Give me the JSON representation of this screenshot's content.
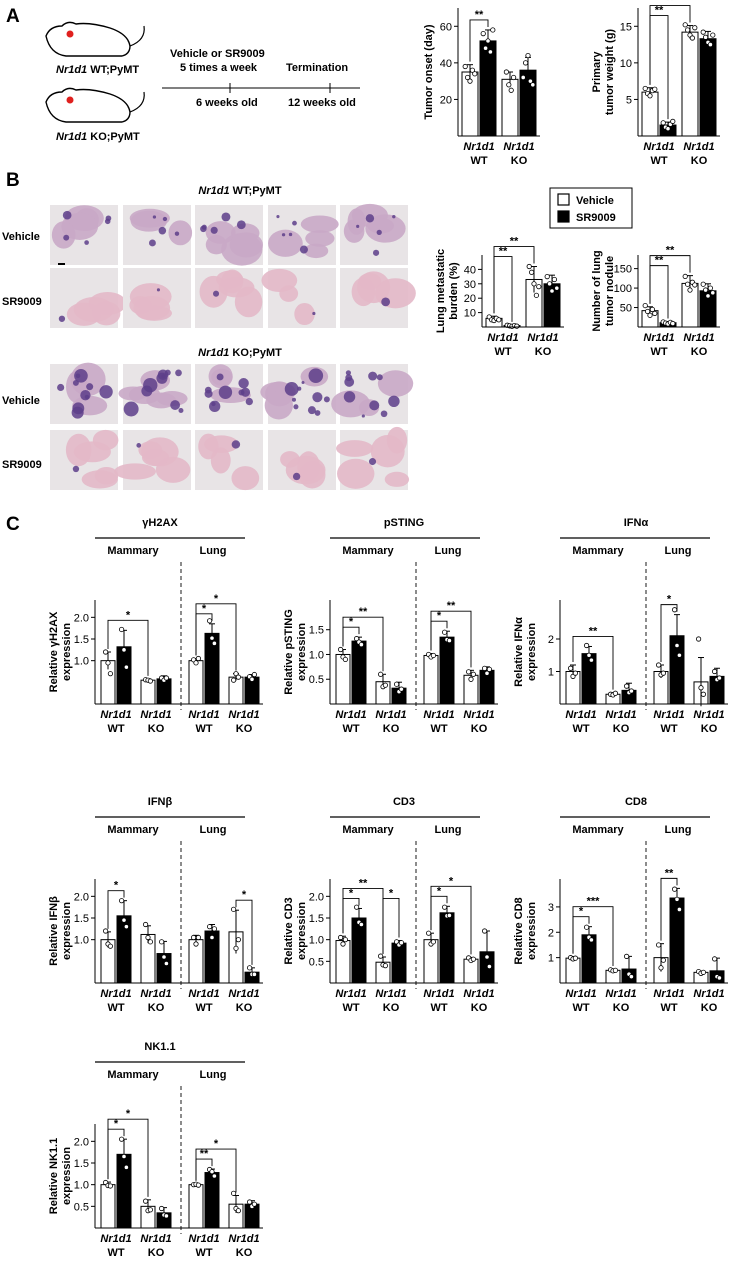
{
  "panels": {
    "a": "A",
    "b": "B",
    "c": "C"
  },
  "schema": {
    "mouse1_gene": "Nr1d1",
    "mouse1_rest": " WT;PyMT",
    "mouse2_gene": "Nr1d1",
    "mouse2_rest": " KO;PyMT",
    "treatment_line1": "Vehicle or SR9009",
    "treatment_line2": "5 times a week",
    "termination": "Termination",
    "start_age": "6 weeks old",
    "end_age": "12 weeks old"
  },
  "histology": {
    "wt_title_gene": "Nr1d1",
    "wt_title_rest": " WT;PyMT",
    "ko_title_gene": "Nr1d1",
    "ko_title_rest": " KO;PyMT",
    "row_vehicle": "Vehicle",
    "row_sr9009": "SR9009"
  },
  "legend": {
    "vehicle": "Vehicle",
    "sr9009": "SR9009"
  },
  "groups": {
    "gene": "Nr1d1",
    "wt": "WT",
    "ko": "KO"
  },
  "tissues": {
    "mammary": "Mammary",
    "lung": "Lung"
  },
  "colors": {
    "vehicle_fill": "#ffffff",
    "sr9009_fill": "#000000",
    "stroke": "#000000"
  },
  "chart_data": [
    {
      "id": "tumor_onset",
      "type": "bar",
      "ylabel": [
        "Tumor onset (day)"
      ],
      "yticks": [
        20,
        40,
        60
      ],
      "ylim": [
        0,
        70
      ],
      "groups": [
        "Nr1d1 WT",
        "Nr1d1 KO"
      ],
      "series": [
        "Vehicle",
        "SR9009"
      ],
      "values": [
        35,
        52,
        31,
        36
      ],
      "errors": [
        4,
        6,
        4,
        7
      ],
      "points": [
        [
          38,
          32,
          30,
          36,
          34
        ],
        [
          56,
          48,
          52,
          46,
          58
        ],
        [
          35,
          28,
          25,
          32
        ],
        [
          32,
          40,
          44,
          30,
          28
        ]
      ],
      "sig": [
        {
          "a": 0,
          "b": 1,
          "label": "**",
          "tier": 0
        }
      ]
    },
    {
      "id": "tumor_weight",
      "type": "bar",
      "ylabel": [
        "Primary",
        "tumor weight (g)"
      ],
      "yticks": [
        5,
        10,
        15
      ],
      "ylim": [
        0,
        17.5
      ],
      "groups": [
        "Nr1d1 WT",
        "Nr1d1 KO"
      ],
      "series": [
        "Vehicle",
        "SR9009"
      ],
      "values": [
        6.0,
        1.5,
        14.2,
        13.3
      ],
      "errors": [
        0.6,
        0.4,
        0.9,
        1.0
      ],
      "points": [
        [
          6.5,
          5.8,
          5.5,
          6.2,
          6.4
        ],
        [
          1.8,
          1.2,
          1.0,
          1.6,
          2.0
        ],
        [
          15.2,
          14.5,
          13.8,
          13.4,
          14.8
        ],
        [
          14.2,
          13.5,
          12.8,
          12.5,
          13.8
        ]
      ],
      "sig": [
        {
          "a": 0,
          "b": 1,
          "label": "**",
          "tier": 0
        },
        {
          "a": 0,
          "b": 2,
          "label": "**",
          "tier": 1
        }
      ]
    },
    {
      "id": "lung_burden",
      "type": "bar",
      "ylabel": [
        "Lung metastatic",
        "burden (%)"
      ],
      "yticks": [
        10,
        20,
        30,
        40
      ],
      "ylim": [
        0,
        50
      ],
      "groups": [
        "Nr1d1 WT",
        "Nr1d1 KO"
      ],
      "series": [
        "Vehicle",
        "SR9009"
      ],
      "values": [
        6,
        1,
        33,
        30
      ],
      "errors": [
        1.5,
        0.5,
        9,
        6
      ],
      "points": [
        [
          7,
          5,
          4.5,
          6,
          5
        ],
        [
          1.2,
          0.8,
          0.5,
          1.0,
          0.6
        ],
        [
          42,
          38,
          30,
          22,
          28
        ],
        [
          35,
          30,
          25,
          33,
          27
        ]
      ],
      "sig": [
        {
          "a": 0,
          "b": 1,
          "label": "**",
          "tier": 0
        },
        {
          "a": 0,
          "b": 2,
          "label": "**",
          "tier": 1
        }
      ]
    },
    {
      "id": "tumor_nodule",
      "type": "bar",
      "ylabel": [
        "Number of lung",
        "tumor nodule"
      ],
      "yticks": [
        50,
        100,
        150
      ],
      "ylim": [
        0,
        185
      ],
      "groups": [
        "Nr1d1 WT",
        "Nr1d1 KO"
      ],
      "series": [
        "Vehicle",
        "SR9009"
      ],
      "values": [
        42,
        11,
        112,
        93
      ],
      "errors": [
        10,
        3,
        20,
        18
      ],
      "points": [
        [
          55,
          40,
          30,
          45,
          35
        ],
        [
          13,
          10,
          8,
          12,
          9
        ],
        [
          130,
          110,
          95,
          115,
          108
        ],
        [
          110,
          95,
          80,
          100,
          88
        ]
      ],
      "sig": [
        {
          "a": 0,
          "b": 1,
          "label": "**",
          "tier": 0
        },
        {
          "a": 0,
          "b": 2,
          "label": "**",
          "tier": 1
        }
      ]
    },
    {
      "id": "gH2AX",
      "type": "bar",
      "title": "γH2AX",
      "ylabel": [
        "Relative γH2AX",
        "expression"
      ],
      "yticks": [
        1.0,
        1.5,
        2.0
      ],
      "ylim": [
        0,
        2.4
      ],
      "groups": [
        "Nr1d1 WT",
        "Nr1d1 KO"
      ],
      "series": [
        "Vehicle",
        "SR9009"
      ],
      "mammary": {
        "values": [
          1.0,
          1.32,
          0.55,
          0.58
        ],
        "errors": [
          0.2,
          0.38,
          0.03,
          0.07
        ],
        "points": [
          [
            1.2,
            0.95,
            0.7
          ],
          [
            1.72,
            1.25,
            0.85
          ],
          [
            0.56,
            0.55,
            0.53
          ],
          [
            0.6,
            0.55,
            0.6
          ]
        ],
        "sig": [
          {
            "a": 0,
            "b": 2,
            "label": "*",
            "tier": 0
          }
        ]
      },
      "lung": {
        "values": [
          1.0,
          1.63,
          0.62,
          0.62
        ],
        "errors": [
          0.05,
          0.22,
          0.08,
          0.06
        ],
        "points": [
          [
            1.02,
            0.95,
            1.05
          ],
          [
            1.92,
            1.52,
            1.4
          ],
          [
            0.55,
            0.7,
            0.62
          ],
          [
            0.63,
            0.57,
            0.68
          ]
        ],
        "sig": [
          {
            "a": 0,
            "b": 1,
            "label": "*",
            "tier": 0
          },
          {
            "a": 0,
            "b": 2,
            "label": "*",
            "tier": 1
          }
        ]
      }
    },
    {
      "id": "pSTING",
      "type": "bar",
      "title": "pSTING",
      "ylabel": [
        "Relative pSTING",
        "expression"
      ],
      "yticks": [
        0.5,
        1.0,
        1.5
      ],
      "ylim": [
        0,
        2.1
      ],
      "groups": [
        "Nr1d1 WT",
        "Nr1d1 KO"
      ],
      "series": [
        "Vehicle",
        "SR9009"
      ],
      "mammary": {
        "values": [
          1.0,
          1.27,
          0.45,
          0.32
        ],
        "errors": [
          0.1,
          0.08,
          0.15,
          0.12
        ],
        "points": [
          [
            1.1,
            0.95,
            0.9
          ],
          [
            1.32,
            1.25,
            1.2
          ],
          [
            0.6,
            0.35,
            0.38
          ],
          [
            0.4,
            0.25,
            0.3
          ]
        ],
        "sig": [
          {
            "a": 0,
            "b": 1,
            "label": "*",
            "tier": 0
          },
          {
            "a": 0,
            "b": 2,
            "label": "**",
            "tier": 1
          }
        ]
      },
      "lung": {
        "values": [
          0.98,
          1.35,
          0.58,
          0.68
        ],
        "errors": [
          0.04,
          0.12,
          0.1,
          0.07
        ],
        "points": [
          [
            1.0,
            0.95,
            0.98
          ],
          [
            1.45,
            1.3,
            1.28
          ],
          [
            0.65,
            0.5,
            0.6
          ],
          [
            0.72,
            0.62,
            0.7
          ]
        ],
        "sig": [
          {
            "a": 0,
            "b": 1,
            "label": "*",
            "tier": 0
          },
          {
            "a": 0,
            "b": 2,
            "label": "**",
            "tier": 1
          }
        ]
      }
    },
    {
      "id": "IFNa",
      "type": "bar",
      "title": "IFNα",
      "ylabel": [
        "Relative IFNα",
        "expression"
      ],
      "yticks": [
        1.0,
        2.0
      ],
      "ylim": [
        0,
        3.2
      ],
      "groups": [
        "Nr1d1 WT",
        "Nr1d1 KO"
      ],
      "series": [
        "Vehicle",
        "SR9009"
      ],
      "mammary": {
        "values": [
          1.0,
          1.55,
          0.3,
          0.42
        ],
        "errors": [
          0.2,
          0.22,
          0.05,
          0.22
        ],
        "points": [
          [
            1.1,
            0.85,
            0.95
          ],
          [
            1.8,
            1.5,
            1.35
          ],
          [
            0.3,
            0.28,
            0.33
          ],
          [
            0.55,
            0.35,
            0.4
          ]
        ],
        "sig": [
          {
            "a": 0,
            "b": 2,
            "label": "**",
            "tier": 0
          }
        ]
      },
      "lung": {
        "values": [
          1.0,
          2.1,
          0.68,
          0.85
        ],
        "errors": [
          0.2,
          0.65,
          0.75,
          0.25
        ],
        "points": [
          [
            1.2,
            0.9,
            0.95
          ],
          [
            2.9,
            1.8,
            1.5
          ],
          [
            2.0,
            0.5,
            0.3
          ],
          [
            1.0,
            0.75,
            0.8
          ]
        ],
        "sig": [
          {
            "a": 0,
            "b": 1,
            "label": "*",
            "tier": 0
          }
        ]
      }
    },
    {
      "id": "IFNb",
      "type": "bar",
      "title": "IFNβ",
      "ylabel": [
        "Relative IFNβ",
        "expression"
      ],
      "yticks": [
        1.0,
        1.5,
        2.0
      ],
      "ylim": [
        0,
        2.4
      ],
      "groups": [
        "Nr1d1 WT",
        "Nr1d1 KO"
      ],
      "series": [
        "Vehicle",
        "SR9009"
      ],
      "mammary": {
        "values": [
          1.0,
          1.55,
          1.12,
          0.68
        ],
        "errors": [
          0.18,
          0.35,
          0.2,
          0.28
        ],
        "points": [
          [
            1.2,
            0.9,
            0.85
          ],
          [
            1.9,
            1.45,
            1.3
          ],
          [
            1.35,
            1.05,
            0.95
          ],
          [
            0.95,
            0.6,
            0.45
          ]
        ],
        "sig": [
          {
            "a": 0,
            "b": 1,
            "label": "*",
            "tier": 0
          }
        ]
      },
      "lung": {
        "values": [
          1.0,
          1.2,
          1.18,
          0.25
        ],
        "errors": [
          0.1,
          0.15,
          0.5,
          0.1
        ],
        "points": [
          [
            1.05,
            0.9,
            1.05
          ],
          [
            1.3,
            1.05,
            1.25
          ],
          [
            1.7,
            0.8,
            1.0
          ],
          [
            0.35,
            0.2,
            0.2
          ]
        ],
        "sig": [
          {
            "a": 2,
            "b": 3,
            "label": "*",
            "tier": 0
          }
        ]
      }
    },
    {
      "id": "CD3",
      "type": "bar",
      "title": "CD3",
      "ylabel": [
        "Relative CD3",
        "expression"
      ],
      "yticks": [
        0.5,
        1.0,
        1.5,
        2.0
      ],
      "ylim": [
        0,
        2.4
      ],
      "groups": [
        "Nr1d1 WT",
        "Nr1d1 KO"
      ],
      "series": [
        "Vehicle",
        "SR9009"
      ],
      "mammary": {
        "values": [
          0.98,
          1.5,
          0.48,
          0.92
        ],
        "errors": [
          0.1,
          0.22,
          0.12,
          0.06
        ],
        "points": [
          [
            1.05,
            0.9,
            1.0
          ],
          [
            1.75,
            1.4,
            1.35
          ],
          [
            0.62,
            0.42,
            0.4
          ],
          [
            0.95,
            0.88,
            0.93
          ]
        ],
        "sig": [
          {
            "a": 0,
            "b": 1,
            "label": "*",
            "tier": 0
          },
          {
            "a": 0,
            "b": 2,
            "label": "**",
            "tier": 1
          },
          {
            "a": 2,
            "b": 3,
            "label": "*",
            "tier": 0
          }
        ]
      },
      "lung": {
        "values": [
          1.0,
          1.62,
          0.55,
          0.72
        ],
        "errors": [
          0.15,
          0.15,
          0.04,
          0.48
        ],
        "points": [
          [
            1.15,
            0.9,
            0.95
          ],
          [
            1.75,
            1.55,
            1.56
          ],
          [
            0.58,
            0.52,
            0.55
          ],
          [
            1.2,
            0.6,
            0.38
          ]
        ],
        "sig": [
          {
            "a": 0,
            "b": 1,
            "label": "*",
            "tier": 0
          },
          {
            "a": 0,
            "b": 2,
            "label": "*",
            "tier": 1
          }
        ]
      }
    },
    {
      "id": "CD8",
      "type": "bar",
      "title": "CD8",
      "ylabel": [
        "Relative CD8",
        "expression"
      ],
      "yticks": [
        1.0,
        2.0,
        3.0
      ],
      "ylim": [
        0,
        4.1
      ],
      "groups": [
        "Nr1d1 WT",
        "Nr1d1 KO"
      ],
      "series": [
        "Vehicle",
        "SR9009"
      ],
      "mammary": {
        "values": [
          0.98,
          1.9,
          0.5,
          0.55
        ],
        "errors": [
          0.06,
          0.32,
          0.05,
          0.5
        ],
        "points": [
          [
            1.0,
            0.95,
            0.98
          ],
          [
            2.2,
            1.8,
            1.7
          ],
          [
            0.52,
            0.48,
            0.5
          ],
          [
            1.05,
            0.35,
            0.25
          ]
        ],
        "sig": [
          {
            "a": 0,
            "b": 1,
            "label": "*",
            "tier": 0
          },
          {
            "a": 0,
            "b": 2,
            "label": "***",
            "tier": 1
          }
        ]
      },
      "lung": {
        "values": [
          1.0,
          3.35,
          0.42,
          0.48
        ],
        "errors": [
          0.55,
          0.38,
          0.05,
          0.5
        ],
        "points": [
          [
            1.5,
            0.6,
            0.9
          ],
          [
            3.7,
            3.3,
            2.9
          ],
          [
            0.45,
            0.38,
            0.42
          ],
          [
            0.95,
            0.25,
            0.2
          ]
        ],
        "sig": [
          {
            "a": 0,
            "b": 1,
            "label": "**",
            "tier": 0
          }
        ]
      }
    },
    {
      "id": "NK11",
      "type": "bar",
      "title": "NK1.1",
      "ylabel": [
        "Relative NK1.1",
        "expression"
      ],
      "yticks": [
        0.5,
        1.0,
        1.5,
        2.0
      ],
      "ylim": [
        0,
        2.4
      ],
      "groups": [
        "Nr1d1 WT",
        "Nr1d1 KO"
      ],
      "series": [
        "Vehicle",
        "SR9009"
      ],
      "mammary": {
        "values": [
          1.0,
          1.7,
          0.5,
          0.35
        ],
        "errors": [
          0.06,
          0.35,
          0.15,
          0.12
        ],
        "points": [
          [
            1.05,
            0.98,
            0.97
          ],
          [
            2.05,
            1.65,
            1.4
          ],
          [
            0.62,
            0.4,
            0.42
          ],
          [
            0.45,
            0.3,
            0.28
          ]
        ],
        "sig": [
          {
            "a": 0,
            "b": 1,
            "label": "*",
            "tier": 0
          },
          {
            "a": 0,
            "b": 2,
            "label": "*",
            "tier": 1
          }
        ]
      },
      "lung": {
        "values": [
          1.0,
          1.28,
          0.55,
          0.55
        ],
        "errors": [
          0.02,
          0.08,
          0.2,
          0.08
        ],
        "points": [
          [
            1.0,
            1.01,
            0.99
          ],
          [
            1.35,
            1.3,
            1.2
          ],
          [
            0.8,
            0.45,
            0.4
          ],
          [
            0.6,
            0.5,
            0.55
          ]
        ],
        "sig": [
          {
            "a": 0,
            "b": 1,
            "label": "**",
            "tier": 0
          },
          {
            "a": 0,
            "b": 2,
            "label": "*",
            "tier": 1
          }
        ]
      }
    }
  ]
}
